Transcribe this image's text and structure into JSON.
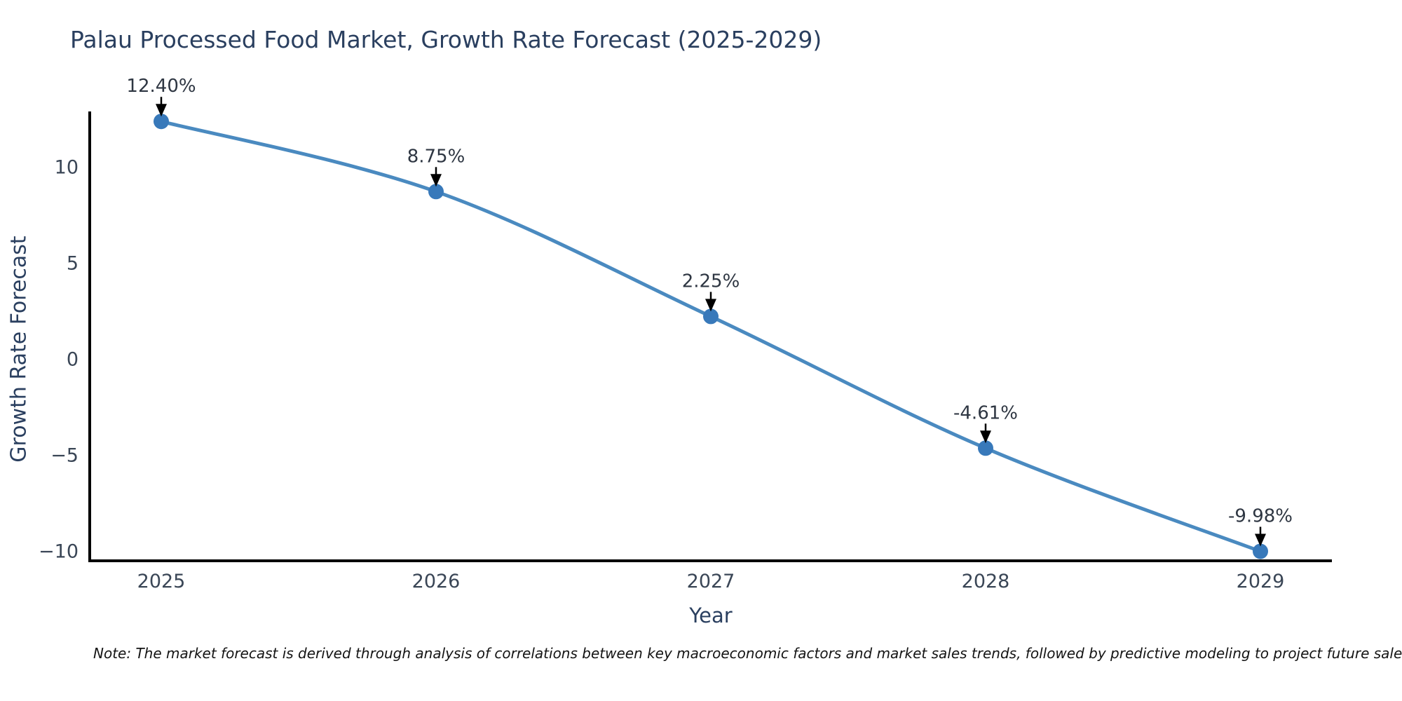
{
  "chart": {
    "note": "Note: The market forecast is derived through analysis of correlations between key macroeconomic factors and market sales trends, followed by predictive modeling to project future sales",
    "colors": {
      "line": "#4a8ac0",
      "marker": "#3879ba",
      "arrow": "#000000",
      "axis_spine": "#000000",
      "title_text": "#2a3f5f",
      "tick_text": "#3a4656",
      "annotation_text": "#2e3642"
    }
  },
  "chart_data": {
    "type": "line",
    "title": "Palau Processed Food Market, Growth Rate Forecast (2025-2029)",
    "xlabel": "Year",
    "ylabel": "Growth Rate Forecast",
    "x": [
      2025,
      2026,
      2027,
      2028,
      2029
    ],
    "series": [
      {
        "name": "Growth Rate Forecast",
        "values": [
          12.4,
          8.75,
          2.25,
          -4.61,
          -9.98
        ]
      }
    ],
    "point_labels": [
      "12.40%",
      "8.75%",
      "2.25%",
      "-4.61%",
      "-9.98%"
    ],
    "xticks": [
      "2025",
      "2026",
      "2027",
      "2028",
      "2029"
    ],
    "yticks": [
      {
        "value": 10,
        "label": "10"
      },
      {
        "value": 5,
        "label": "5"
      },
      {
        "value": 0,
        "label": "0"
      },
      {
        "value": -5,
        "label": "−5"
      },
      {
        "value": -10,
        "label": "−10"
      }
    ],
    "ylim": [
      -10.6,
      12.9
    ],
    "grid": false,
    "legend": false,
    "annotations_style": "black-arrow-down-to-point"
  }
}
